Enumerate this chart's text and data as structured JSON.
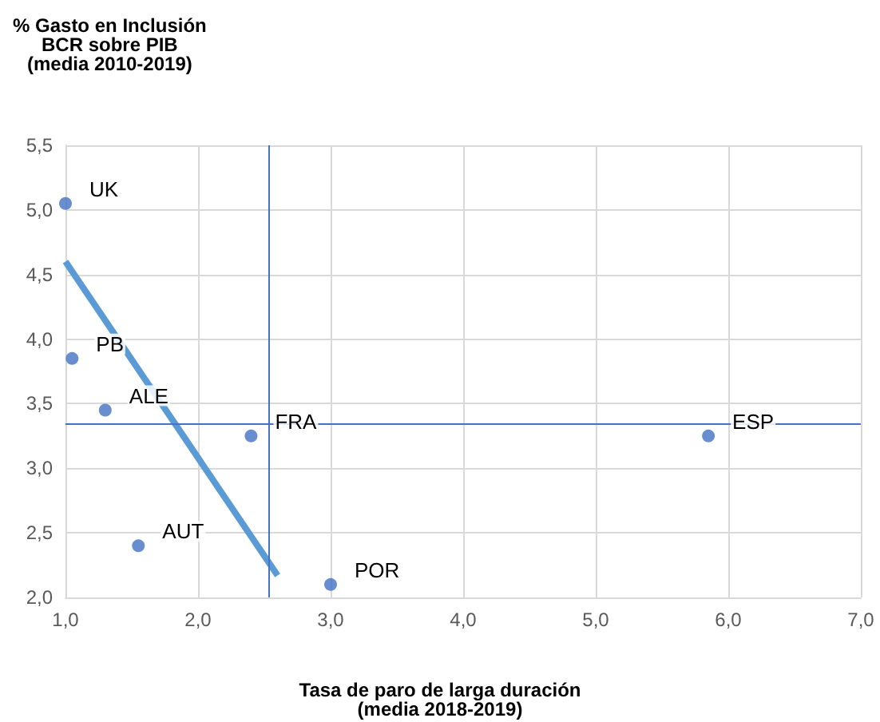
{
  "chart_data": {
    "type": "scatter",
    "ylabel": "% Gasto en Inclusión\nBCR sobre PIB\n(media 2010-2019)",
    "xlabel": "Tasa de paro de larga duración\n(media 2018-2019)",
    "series": [
      {
        "type": "scatter",
        "color": "#4472c4",
        "marker": "circle",
        "x": [
          1.0,
          1.05,
          1.3,
          1.55,
          2.4,
          3.0,
          5.85
        ],
        "values": [
          5.05,
          3.85,
          3.45,
          2.4,
          3.25,
          2.1,
          3.25
        ]
      },
      {
        "type": "line",
        "color": "#5b9bd5",
        "marker": "none",
        "line_style": "solid",
        "x": [
          1.0,
          2.6
        ],
        "values": [
          4.6,
          2.17
        ]
      }
    ],
    "annotations": [
      {
        "text": "UK",
        "x": 1.0,
        "y": 5.05
      },
      {
        "text": "PB",
        "x": 1.05,
        "y": 3.85
      },
      {
        "text": "ALE",
        "x": 1.3,
        "y": 3.45
      },
      {
        "text": "AUT",
        "x": 1.55,
        "y": 2.4
      },
      {
        "text": "FRA",
        "x": 2.4,
        "y": 3.25
      },
      {
        "text": "POR",
        "x": 3.0,
        "y": 2.1
      },
      {
        "text": "ESP",
        "x": 5.85,
        "y": 3.25
      }
    ],
    "ref_lines": [
      {
        "axis": "x",
        "value": 2.53,
        "color": "#4472c4"
      },
      {
        "axis": "y",
        "value": 3.34,
        "color": "#4472c4"
      }
    ],
    "xlim": [
      1.0,
      7.0
    ],
    "xticks": [
      {
        "value": 1,
        "label": "1,0"
      },
      {
        "value": 2,
        "label": "2,0"
      },
      {
        "value": 3,
        "label": "3,0"
      },
      {
        "value": 4,
        "label": "4,0"
      },
      {
        "value": 5,
        "label": "5,0"
      },
      {
        "value": 6,
        "label": "6,0"
      },
      {
        "value": 7,
        "label": "7,0"
      }
    ],
    "ylim": [
      2.0,
      5.5
    ],
    "yticks": [
      {
        "value": 2,
        "label": "2,0"
      },
      {
        "value": 2.5,
        "label": "2,5"
      },
      {
        "value": 3,
        "label": "3,0"
      },
      {
        "value": 3.5,
        "label": "3,5"
      },
      {
        "value": 4,
        "label": "4,0"
      },
      {
        "value": 4.5,
        "label": "4,5"
      },
      {
        "value": 5,
        "label": "5,0"
      },
      {
        "value": 5.5,
        "label": "5,5"
      }
    ],
    "grid": true
  }
}
